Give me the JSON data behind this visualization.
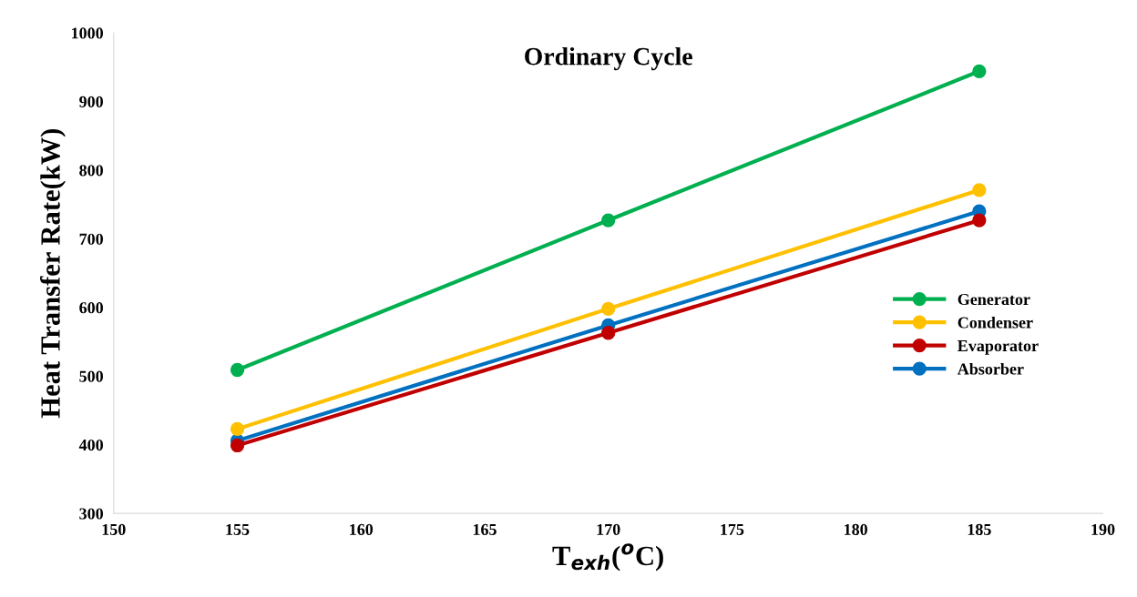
{
  "chart_data": {
    "type": "line",
    "title": "Ordinary Cycle",
    "xlabel": "T$_{exh}$($^{o}$C)",
    "ylabel": "Heat Transfer Rate(kW)",
    "x": [
      155,
      170,
      185
    ],
    "series": [
      {
        "name": "Generator",
        "color": "#00b050",
        "values": [
          509,
          727,
          944
        ]
      },
      {
        "name": "Condenser",
        "color": "#ffc000",
        "values": [
          423,
          598,
          771
        ]
      },
      {
        "name": "Evaporator",
        "color": "#c00000",
        "values": [
          399,
          563,
          727
        ]
      },
      {
        "name": "Absorber",
        "color": "#0070c0",
        "values": [
          406,
          574,
          740
        ]
      }
    ],
    "xlim": [
      150,
      190
    ],
    "xticks": [
      150,
      155,
      160,
      165,
      170,
      175,
      180,
      185,
      190
    ],
    "ylim": [
      300,
      1000
    ],
    "yticks": [
      300,
      400,
      500,
      600,
      700,
      800,
      900,
      1000
    ],
    "grid": false,
    "legend": "right",
    "marker": "circle",
    "line_style": "solid"
  }
}
